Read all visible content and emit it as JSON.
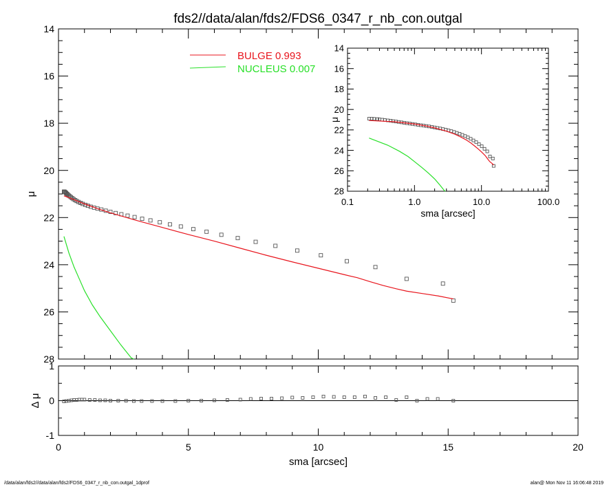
{
  "chart_data": [
    {
      "type": "scatter",
      "title": "fds2//data/alan/fds2/FDS6_0347_r_nb_con.outgal",
      "xlabel": "",
      "ylabel": "μ",
      "xlim": [
        0,
        20
      ],
      "ylim": [
        28,
        14
      ],
      "y_inverted": true,
      "xticks": [
        0,
        5,
        10,
        15,
        20
      ],
      "yticks": [
        14,
        16,
        18,
        20,
        22,
        24,
        26,
        28
      ],
      "legend": {
        "placement": "top-center",
        "entries": [
          {
            "text": "BULGE  0.993",
            "color": "#e8141c"
          },
          {
            "text": "NUCLEUS  0.007",
            "color": "#28e028"
          }
        ]
      },
      "series": [
        {
          "marker": "square",
          "color": "#555555",
          "x": [
            0.21,
            0.23,
            0.25,
            0.28,
            0.3,
            0.33,
            0.36,
            0.4,
            0.44,
            0.48,
            0.53,
            0.58,
            0.64,
            0.7,
            0.77,
            0.85,
            0.93,
            1.03,
            1.13,
            1.24,
            1.37,
            1.5,
            1.65,
            1.82,
            2.0,
            2.2,
            2.42,
            2.66,
            2.93,
            3.22,
            3.54,
            3.9,
            4.29,
            4.71,
            5.19,
            5.7,
            6.27,
            6.9,
            7.59,
            8.35,
            9.19,
            10.1,
            11.1,
            12.2,
            13.4,
            14.8,
            15.2
          ],
          "y": [
            20.9,
            20.9,
            20.92,
            20.94,
            20.97,
            21.0,
            21.03,
            21.07,
            21.1,
            21.14,
            21.18,
            21.22,
            21.26,
            21.3,
            21.34,
            21.38,
            21.42,
            21.46,
            21.5,
            21.54,
            21.58,
            21.62,
            21.66,
            21.71,
            21.76,
            21.81,
            21.86,
            21.92,
            21.98,
            22.05,
            22.12,
            22.2,
            22.29,
            22.38,
            22.49,
            22.6,
            22.73,
            22.87,
            23.03,
            23.2,
            23.4,
            23.6,
            23.85,
            24.1,
            24.6,
            24.8,
            25.52
          ]
        },
        {
          "name": "BULGE  0.993",
          "mode": "line",
          "color": "#e8141c",
          "x": [
            0.21,
            0.5,
            1.0,
            1.5,
            2.0,
            3.0,
            4.0,
            5.0,
            6.0,
            7.0,
            8.0,
            9.0,
            10.0,
            11.0,
            11.5,
            12.0,
            12.5,
            13.0,
            13.4,
            14.0,
            14.6,
            15.2
          ],
          "y": [
            21.08,
            21.2,
            21.42,
            21.62,
            21.8,
            22.12,
            22.42,
            22.72,
            23.0,
            23.3,
            23.6,
            23.88,
            24.15,
            24.42,
            24.55,
            24.72,
            24.88,
            25.02,
            25.12,
            25.22,
            25.32,
            25.45
          ]
        },
        {
          "name": "NUCLEUS  0.007",
          "mode": "line",
          "color": "#28e028",
          "x": [
            0.21,
            0.4,
            0.6,
            0.8,
            1.0,
            1.3,
            1.6,
            2.0,
            2.4,
            2.8,
            2.9
          ],
          "y": [
            22.8,
            23.5,
            24.1,
            24.6,
            25.1,
            25.7,
            26.2,
            26.8,
            27.4,
            27.95,
            28.1
          ]
        }
      ]
    },
    {
      "type": "scatter",
      "title": "",
      "xlabel": "sma [arcsec]",
      "ylabel": "Δ μ",
      "xlim": [
        0,
        20
      ],
      "ylim": [
        -1,
        1
      ],
      "xticks": [
        0,
        5,
        10,
        15,
        20
      ],
      "yticks": [
        -1,
        0,
        1
      ],
      "series": [
        {
          "marker": "square",
          "color": "#555555",
          "x": [
            0.21,
            0.3,
            0.4,
            0.5,
            0.6,
            0.7,
            0.8,
            0.9,
            1.0,
            1.2,
            1.4,
            1.6,
            1.8,
            2.0,
            2.3,
            2.6,
            2.9,
            3.2,
            3.6,
            4.0,
            4.5,
            5.0,
            5.5,
            6.0,
            6.5,
            7.0,
            7.4,
            7.8,
            8.2,
            8.6,
            9.0,
            9.4,
            9.8,
            10.2,
            10.6,
            11.0,
            11.4,
            11.8,
            12.2,
            12.6,
            13.0,
            13.4,
            13.8,
            14.2,
            14.6,
            15.2
          ],
          "y": [
            -0.02,
            -0.01,
            0.0,
            0.01,
            0.02,
            0.02,
            0.03,
            0.03,
            0.03,
            0.02,
            0.02,
            0.01,
            0.01,
            0.0,
            0.0,
            0.0,
            -0.01,
            -0.01,
            -0.01,
            -0.01,
            -0.01,
            0.0,
            0.0,
            0.01,
            0.02,
            0.03,
            0.05,
            0.06,
            0.06,
            0.07,
            0.09,
            0.08,
            0.1,
            0.12,
            0.11,
            0.1,
            0.1,
            0.12,
            0.08,
            0.1,
            0.02,
            0.1,
            0.0,
            0.05,
            0.05,
            0.0
          ]
        }
      ]
    },
    {
      "type": "scatter",
      "title": "",
      "xlabel": "sma [arcsec]",
      "ylabel": "μ",
      "xscale": "log",
      "xlim": [
        0.1,
        100
      ],
      "ylim": [
        28,
        14
      ],
      "y_inverted": true,
      "xticks": [
        0.1,
        1.0,
        10.0,
        100.0
      ],
      "xticklabels": [
        "0.1",
        "1.0",
        "10.0",
        "100.0"
      ],
      "yticks": [
        14,
        16,
        18,
        20,
        22,
        24,
        26,
        28
      ],
      "series": [
        {
          "marker": "square",
          "color": "#555555",
          "x": [
            0.21,
            0.23,
            0.25,
            0.28,
            0.3,
            0.33,
            0.36,
            0.4,
            0.44,
            0.48,
            0.53,
            0.58,
            0.64,
            0.7,
            0.77,
            0.85,
            0.93,
            1.03,
            1.13,
            1.24,
            1.37,
            1.5,
            1.65,
            1.82,
            2.0,
            2.2,
            2.42,
            2.66,
            2.93,
            3.22,
            3.54,
            3.9,
            4.29,
            4.71,
            5.19,
            5.7,
            6.27,
            6.9,
            7.59,
            8.35,
            9.19,
            10.1,
            11.1,
            12.2,
            13.4,
            14.8,
            15.2
          ],
          "y": [
            20.9,
            20.9,
            20.92,
            20.94,
            20.97,
            21.0,
            21.03,
            21.07,
            21.1,
            21.14,
            21.18,
            21.22,
            21.26,
            21.3,
            21.34,
            21.38,
            21.42,
            21.46,
            21.5,
            21.54,
            21.58,
            21.62,
            21.66,
            21.71,
            21.76,
            21.81,
            21.86,
            21.92,
            21.98,
            22.05,
            22.12,
            22.2,
            22.29,
            22.38,
            22.49,
            22.6,
            22.73,
            22.87,
            23.03,
            23.2,
            23.4,
            23.6,
            23.85,
            24.1,
            24.6,
            24.8,
            25.52
          ]
        },
        {
          "mode": "line",
          "color": "#e8141c",
          "x": [
            0.21,
            0.5,
            1.0,
            1.5,
            2.0,
            3.0,
            4.0,
            5.0,
            6.0,
            7.0,
            8.0,
            9.0,
            10.0,
            11.0,
            11.5,
            12.0,
            12.5,
            13.0,
            13.4,
            14.0,
            14.6,
            15.2
          ],
          "y": [
            21.08,
            21.2,
            21.42,
            21.62,
            21.8,
            22.12,
            22.42,
            22.72,
            23.0,
            23.3,
            23.6,
            23.88,
            24.15,
            24.42,
            24.55,
            24.72,
            24.88,
            25.02,
            25.12,
            25.22,
            25.32,
            25.45
          ]
        },
        {
          "mode": "line",
          "color": "#28e028",
          "x": [
            0.21,
            0.4,
            0.6,
            0.8,
            1.0,
            1.3,
            1.6,
            2.0,
            2.4,
            2.8,
            2.9
          ],
          "y": [
            22.8,
            23.5,
            24.1,
            24.6,
            25.1,
            25.7,
            26.2,
            26.8,
            27.4,
            27.95,
            28.1
          ]
        }
      ]
    }
  ],
  "footer": {
    "left": "/data/alan/fds2//data/alan/fds2/FDS6_0347_r_nb_con.outgal_1dprof",
    "right": "alan@  Mon Nov 11 16:06:48 2019"
  }
}
